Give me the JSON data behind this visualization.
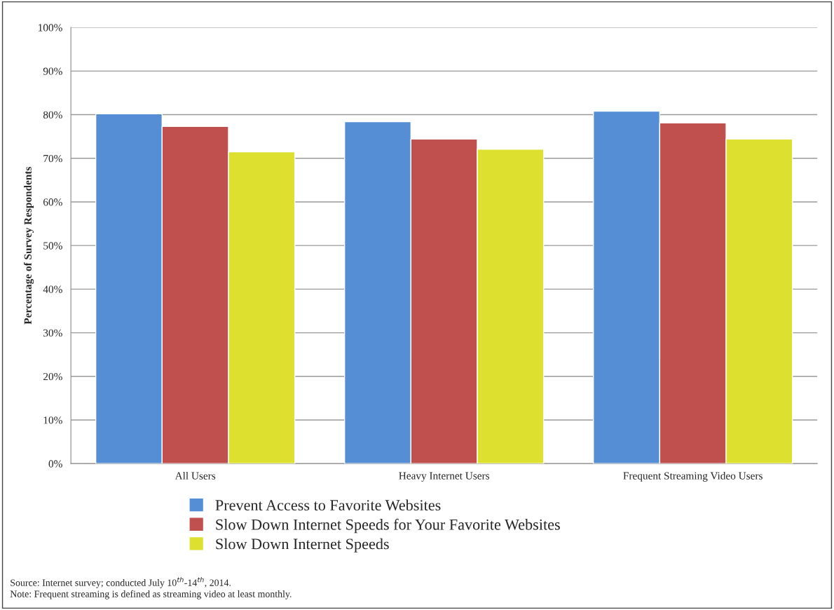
{
  "chart_data": {
    "type": "bar",
    "ylabel": "Percentage of Survey Respondents",
    "categories": [
      "All Users",
      "Heavy Internet Users",
      "Frequent Streaming Video Users"
    ],
    "series": [
      {
        "name": "Prevent Access to Favorite Websites",
        "color": "#558ed5",
        "values": [
          80.2,
          78.4,
          80.8
        ]
      },
      {
        "name": "Slow Down Internet Speeds for Your Favorite Websites",
        "color": "#c0504d",
        "values": [
          77.3,
          74.4,
          78.1
        ]
      },
      {
        "name": "Slow Down Internet Speeds",
        "color": "#dde02f",
        "values": [
          71.5,
          72.1,
          74.4
        ]
      }
    ],
    "ylim": [
      0,
      100
    ],
    "yticks": [
      {
        "value": 0,
        "label": "0%"
      },
      {
        "value": 10,
        "label": "10%"
      },
      {
        "value": 20,
        "label": "20%"
      },
      {
        "value": 30,
        "label": "30%"
      },
      {
        "value": 40,
        "label": "40%"
      },
      {
        "value": 50,
        "label": "50%"
      },
      {
        "value": 60,
        "label": "60%"
      },
      {
        "value": 70,
        "label": "70%"
      },
      {
        "value": 80,
        "label": "80%"
      },
      {
        "value": 90,
        "label": "90%"
      },
      {
        "value": 100,
        "label": "100%"
      }
    ],
    "grid": "y",
    "legend": "bottom",
    "annotations": [
      "Source: Internet survey; conducted July 10$^{th}$-14$^{th}$, 2014.",
      "Note: Frequent streaming is defined as streaming video at least monthly."
    ]
  }
}
